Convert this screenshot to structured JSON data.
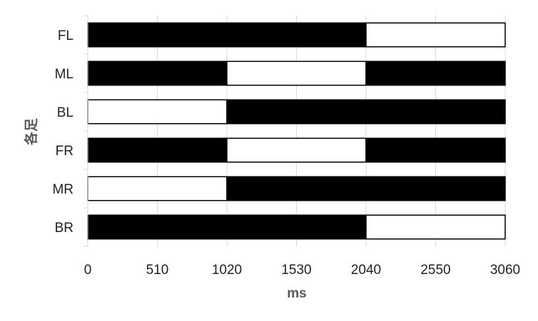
{
  "chart_data": {
    "type": "bar",
    "orientation": "horizontal",
    "stacked": true,
    "xlabel": "ms",
    "ylabel": "各足",
    "xlim": [
      0,
      3060
    ],
    "xticks": [
      "0",
      "510",
      "1020",
      "1530",
      "2040",
      "2550",
      "3060"
    ],
    "categories": [
      "FL",
      "ML",
      "BL",
      "FR",
      "MR",
      "BR"
    ],
    "grid": "vertical",
    "legend": "none",
    "colors": {
      "stance": "#000000",
      "swing": "#ffffff",
      "border": "#000000",
      "grid": "#d9d9d9"
    },
    "rows": [
      {
        "category": "FL",
        "segments": [
          {
            "start": 0,
            "end": 2040,
            "state": "stance"
          },
          {
            "start": 2040,
            "end": 3060,
            "state": "swing"
          }
        ]
      },
      {
        "category": "ML",
        "segments": [
          {
            "start": 0,
            "end": 1020,
            "state": "stance"
          },
          {
            "start": 1020,
            "end": 2040,
            "state": "swing"
          },
          {
            "start": 2040,
            "end": 3060,
            "state": "stance"
          }
        ]
      },
      {
        "category": "BL",
        "segments": [
          {
            "start": 0,
            "end": 1020,
            "state": "swing"
          },
          {
            "start": 1020,
            "end": 3060,
            "state": "stance"
          }
        ]
      },
      {
        "category": "FR",
        "segments": [
          {
            "start": 0,
            "end": 1020,
            "state": "stance"
          },
          {
            "start": 1020,
            "end": 2040,
            "state": "swing"
          },
          {
            "start": 2040,
            "end": 3060,
            "state": "stance"
          }
        ]
      },
      {
        "category": "MR",
        "segments": [
          {
            "start": 0,
            "end": 1020,
            "state": "swing"
          },
          {
            "start": 1020,
            "end": 3060,
            "state": "stance"
          }
        ]
      },
      {
        "category": "BR",
        "segments": [
          {
            "start": 0,
            "end": 2040,
            "state": "stance"
          },
          {
            "start": 2040,
            "end": 3060,
            "state": "swing"
          }
        ]
      }
    ]
  }
}
